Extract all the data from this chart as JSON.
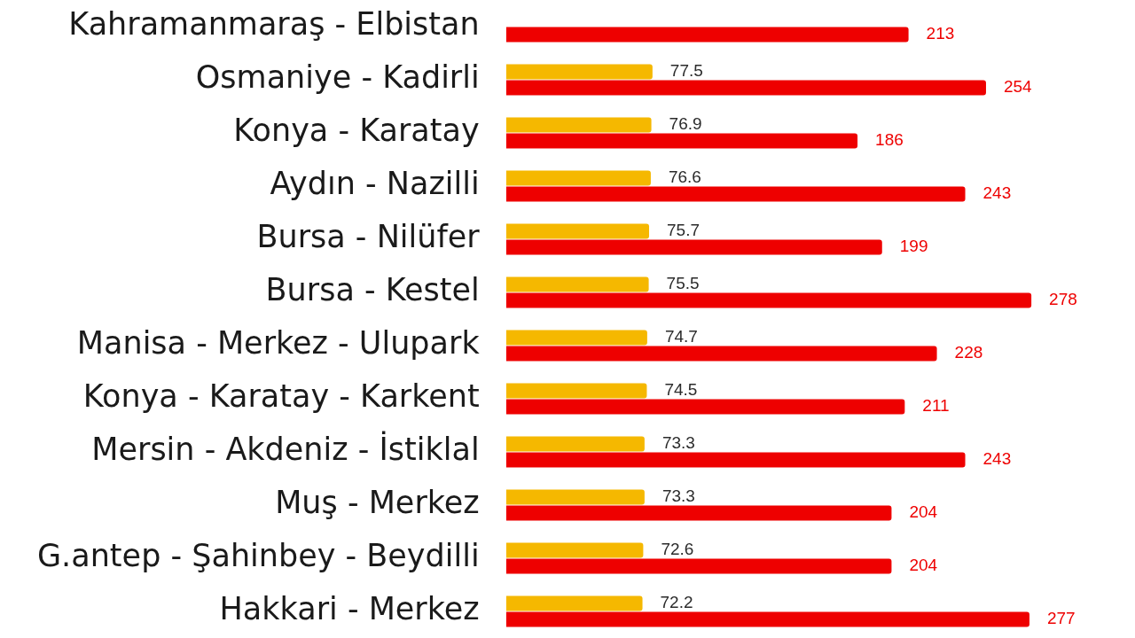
{
  "chart_data": {
    "type": "bar",
    "orientation": "horizontal",
    "categories": [
      "Kahramanmaraş - Elbistan",
      "Osmaniye - Kadirli",
      "Konya - Karatay",
      "Aydın - Nazilli",
      "Bursa - Nilüfer",
      "Bursa - Kestel",
      "Manisa - Merkez - Ulupark",
      "Konya - Karatay - Karkent",
      "Mersin - Akdeniz - İstiklal",
      "Muş - Merkez",
      "G.antep - Şahinbey - Beydilli",
      "Hakkari - Merkez"
    ],
    "series": [
      {
        "color": "#f5b800",
        "values": [
          null,
          77.5,
          76.9,
          76.6,
          75.7,
          75.5,
          74.7,
          74.5,
          73.3,
          73.3,
          72.6,
          72.2
        ]
      },
      {
        "color": "#ee0000",
        "values": [
          213,
          254,
          186,
          243,
          199,
          278,
          228,
          211,
          243,
          204,
          204,
          277
        ]
      }
    ],
    "data_labels": true,
    "tick_labels": "y",
    "grid": false
  }
}
